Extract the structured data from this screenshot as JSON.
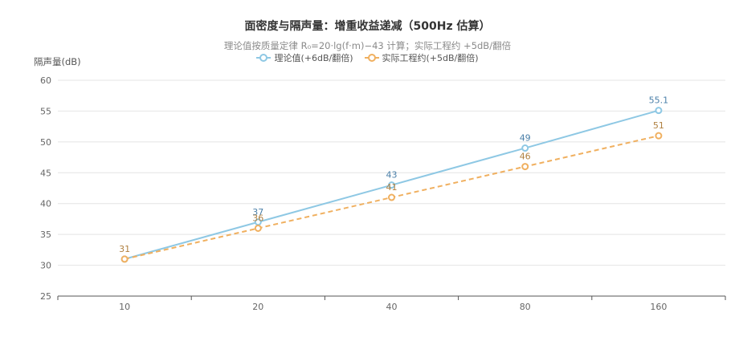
{
  "chart_data": {
    "type": "line",
    "title": "面密度与隔声量：增重收益递减（500Hz 估算）",
    "subtitle": "理论值按质量定律 R₀=20·lg(f·m)−43 计算；实际工程约 +5dB/翻倍",
    "ylabel": "隔声量(dB)",
    "xlabel": "",
    "categories": [
      "10",
      "20",
      "40",
      "80",
      "160"
    ],
    "ylim": [
      25,
      60
    ],
    "yticks": [
      25,
      30,
      35,
      40,
      45,
      50,
      55,
      60
    ],
    "grid": true,
    "legend_position": "top-center",
    "series": [
      {
        "name": "理论值(+6dB/翻倍)",
        "values": [
          31,
          37,
          43,
          49,
          55.1
        ],
        "labels": [
          "",
          "37",
          "43",
          "49",
          "55.1"
        ],
        "color": "#8ec8e4",
        "label_color": "#4a7fa8",
        "dashed": false
      },
      {
        "name": "实际工程约(+5dB/翻倍)",
        "values": [
          31,
          36,
          41,
          46,
          51
        ],
        "labels": [
          "31",
          "36",
          "41",
          "46",
          "51"
        ],
        "color": "#f0b060",
        "label_color": "#b08040",
        "dashed": true
      }
    ]
  }
}
